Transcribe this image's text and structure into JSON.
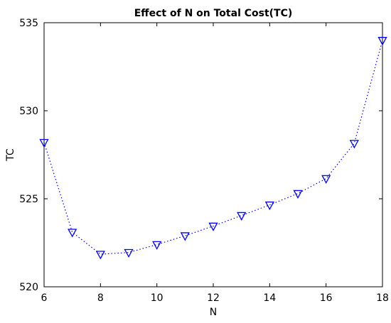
{
  "chart_data": {
    "type": "line",
    "title": "Effect of N on Total Cost(TC)",
    "xlabel": "N",
    "ylabel": "TC",
    "xlim": [
      6,
      18
    ],
    "ylim": [
      520,
      535
    ],
    "xticks": [
      6,
      8,
      10,
      12,
      14,
      16,
      18
    ],
    "yticks": [
      520,
      525,
      530,
      535
    ],
    "grid": false,
    "series": [
      {
        "color": "#0000ff",
        "line_style": "dotted",
        "marker": "down-triangle",
        "x": [
          6,
          7,
          8,
          9,
          10,
          11,
          12,
          13,
          14,
          15,
          16,
          17,
          18
        ],
        "y": [
          528.2,
          523.1,
          521.85,
          521.95,
          522.4,
          522.9,
          523.45,
          524.05,
          524.65,
          525.3,
          526.15,
          528.15,
          534.0
        ]
      }
    ]
  }
}
